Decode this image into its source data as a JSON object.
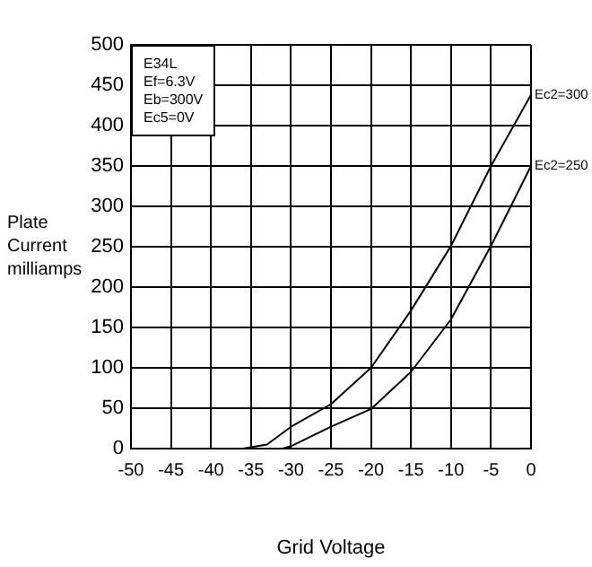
{
  "chart_data": {
    "type": "line",
    "xlabel": "Grid Voltage",
    "ylabel": "Plate Current milliamps",
    "annotations": [
      "E34L",
      "Ef=6.3V",
      "Eb=300V",
      "Ec5=0V"
    ],
    "series": [
      {
        "name": "Ec2=300",
        "color": "#000000",
        "x": [
          -36,
          -33,
          -30,
          -25,
          -20,
          -15,
          -10,
          -5,
          0
        ],
        "values": [
          0,
          5,
          27,
          55,
          100,
          171,
          251,
          350,
          438
        ]
      },
      {
        "name": "Ec2=250",
        "color": "#000000",
        "x": [
          -31,
          -30,
          -25,
          -20,
          -15,
          -10,
          -5,
          0
        ],
        "values": [
          0,
          3,
          27,
          49,
          95,
          160,
          251,
          350
        ]
      }
    ],
    "xlim": [
      -50,
      0
    ],
    "xticks": [
      -50,
      -45,
      -40,
      -35,
      -30,
      -25,
      -20,
      -15,
      -10,
      -5,
      0
    ],
    "ylim": [
      0,
      500
    ],
    "yticks": [
      0,
      50,
      100,
      150,
      200,
      250,
      300,
      350,
      400,
      450,
      500
    ],
    "grid": true,
    "legend": false,
    "marker": "none",
    "line_style": "solid"
  }
}
